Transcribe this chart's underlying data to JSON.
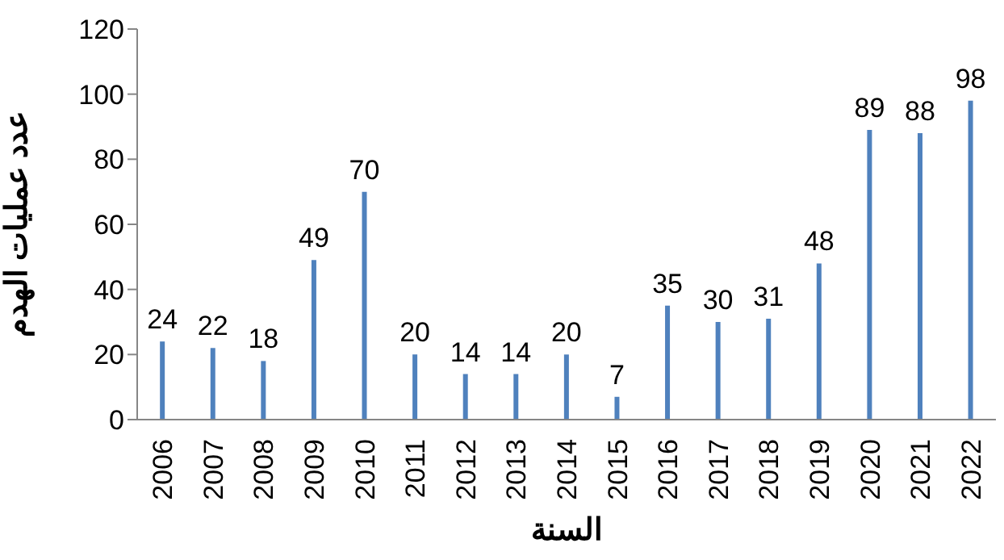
{
  "chart_data": {
    "type": "bar",
    "xlabel": "السنة",
    "ylabel": "عدد عمليات الهدم",
    "categories": [
      "2006",
      "2007",
      "2008",
      "2009",
      "2010",
      "2011",
      "2012",
      "2013",
      "2014",
      "2015",
      "2016",
      "2017",
      "2018",
      "2019",
      "2020",
      "2021",
      "2022"
    ],
    "values": [
      24,
      22,
      18,
      49,
      70,
      20,
      14,
      14,
      20,
      7,
      35,
      30,
      31,
      48,
      89,
      88,
      98
    ],
    "color": "#4f81bd",
    "ylim": [
      0,
      120
    ],
    "yticks": [
      0,
      20,
      40,
      60,
      80,
      100,
      120
    ],
    "grid": false,
    "data_labels": true,
    "legend": false
  }
}
